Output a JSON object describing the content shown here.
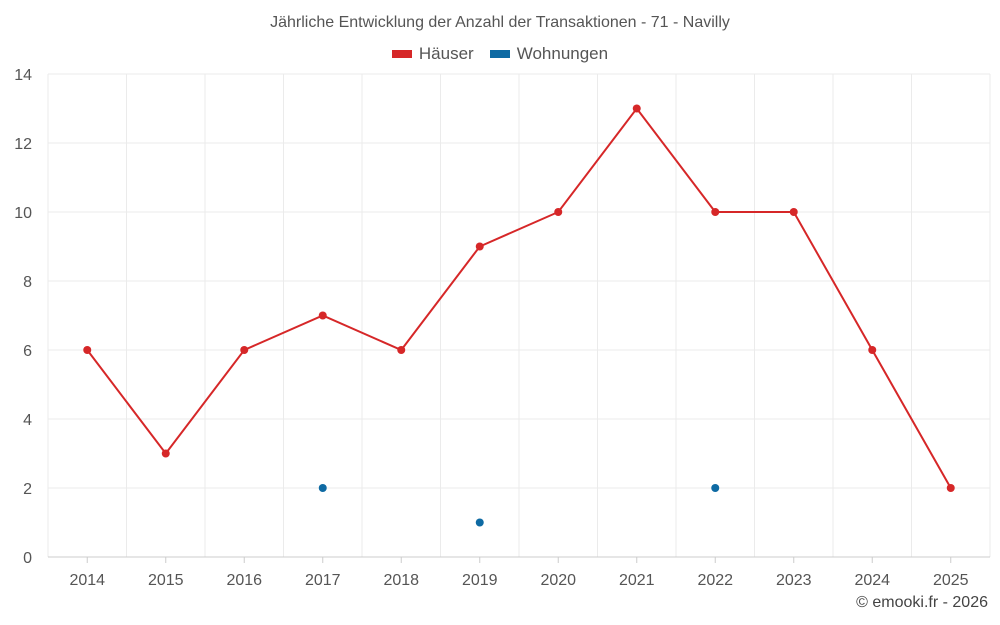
{
  "chart_data": {
    "type": "line",
    "title": "Jährliche Entwicklung der Anzahl der Transaktionen - 71 - Navilly",
    "xlabel": "",
    "ylabel": "",
    "categories": [
      "2014",
      "2015",
      "2016",
      "2017",
      "2018",
      "2019",
      "2020",
      "2021",
      "2022",
      "2023",
      "2024",
      "2025"
    ],
    "ylim": [
      0,
      14
    ],
    "yticks": [
      0,
      2,
      4,
      6,
      8,
      10,
      12,
      14
    ],
    "grid": true,
    "legend_position": "top-center",
    "series": [
      {
        "name": "Häuser",
        "color": "#d62728",
        "line": true,
        "values": [
          6,
          3,
          6,
          7,
          6,
          9,
          10,
          13,
          10,
          10,
          6,
          2
        ]
      },
      {
        "name": "Wohnungen",
        "color": "#0e6aa3",
        "line": false,
        "values": [
          null,
          null,
          null,
          2,
          null,
          1,
          null,
          null,
          2,
          null,
          null,
          null
        ]
      }
    ]
  },
  "credit": "© emooki.fr - 2026"
}
